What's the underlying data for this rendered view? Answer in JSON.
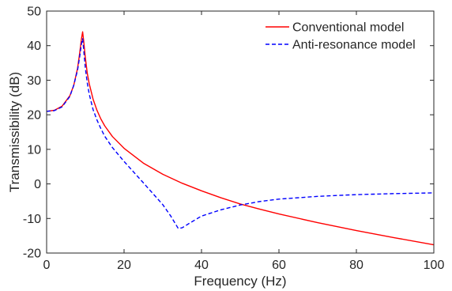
{
  "chart_data": {
    "type": "line",
    "title": "",
    "xlabel": "Frequency (Hz)",
    "ylabel": "Transmissibility (dB)",
    "xlim": [
      0,
      100
    ],
    "ylim": [
      -20,
      50
    ],
    "xticks": [
      0,
      20,
      40,
      60,
      80,
      100
    ],
    "yticks": [
      -20,
      -10,
      0,
      10,
      20,
      30,
      40,
      50
    ],
    "grid": false,
    "legend_position": "top-right",
    "series": [
      {
        "name": "Conventional model",
        "color": "#ff0000",
        "style": "solid",
        "x": [
          0,
          2,
          4,
          6,
          7,
          8,
          8.5,
          9,
          9.3,
          9.6,
          10,
          10.5,
          11,
          12,
          13,
          14,
          15,
          17,
          20,
          25,
          30,
          35,
          40,
          45,
          50,
          55,
          60,
          70,
          80,
          90,
          100
        ],
        "y": [
          21,
          21.3,
          22.5,
          25.5,
          28.5,
          33.5,
          37.5,
          42,
          44,
          41,
          36.5,
          32,
          29,
          24.5,
          21.3,
          18.8,
          16.8,
          13.7,
          10.3,
          6,
          2.8,
          0.2,
          -2,
          -4,
          -5.8,
          -7.3,
          -8.7,
          -11.2,
          -13.5,
          -15.6,
          -17.6
        ]
      },
      {
        "name": "Anti-resonance model",
        "color": "#0000ff",
        "style": "dashed",
        "x": [
          0,
          2,
          4,
          6,
          7,
          8,
          8.5,
          9,
          9.3,
          9.6,
          10,
          10.5,
          11,
          12,
          13,
          14,
          15,
          17,
          20,
          25,
          30,
          32,
          34,
          35,
          37,
          40,
          45,
          50,
          55,
          60,
          70,
          80,
          90,
          100
        ],
        "y": [
          21,
          21.2,
          22.3,
          25.3,
          28.5,
          33,
          36.5,
          40.5,
          42,
          38.5,
          33.5,
          29.2,
          26,
          21.5,
          18.5,
          16,
          13.8,
          10.5,
          6.5,
          0.3,
          -6,
          -9.2,
          -12.9,
          -12.7,
          -11.3,
          -9.3,
          -7.5,
          -6.1,
          -5.1,
          -4.4,
          -3.6,
          -3.1,
          -2.8,
          -2.6
        ]
      }
    ]
  }
}
